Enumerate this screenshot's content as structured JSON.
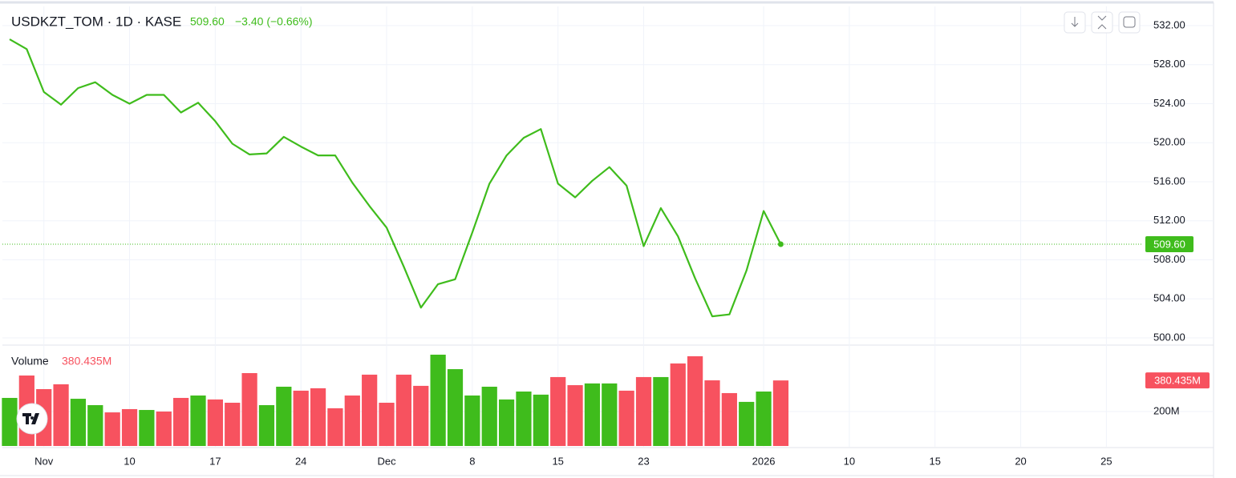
{
  "chart_data": [
    {
      "type": "line",
      "title": "USDKZT_TOM · 1D · KASE",
      "header_change": "−3.40 (−0.66%)",
      "series": [
        {
          "name": "USDKZT_TOM",
          "color": "#3fbc1c",
          "values": [
            530.6,
            529.6,
            525.2,
            523.9,
            525.6,
            526.2,
            524.9,
            524.0,
            524.9,
            524.9,
            523.1,
            524.1,
            522.2,
            519.9,
            518.8,
            518.9,
            520.6,
            519.6,
            518.7,
            518.7,
            515.9,
            513.5,
            511.3,
            507.3,
            503.1,
            505.5,
            506.0,
            510.8,
            515.8,
            518.7,
            520.5,
            521.4,
            515.8,
            514.4,
            516.1,
            517.5,
            515.6,
            509.4,
            513.3,
            510.4,
            506.1,
            502.2,
            502.4,
            506.9,
            513.0,
            509.6
          ],
          "value_labels": [
            null,
            null,
            null,
            null,
            null,
            null,
            null,
            null,
            null,
            null,
            null,
            null,
            null,
            null,
            null,
            null,
            null,
            null,
            null,
            null,
            null,
            null,
            null,
            null,
            null,
            null,
            null,
            null,
            null,
            null,
            null,
            null,
            null,
            null,
            null,
            null,
            null,
            null,
            null,
            null,
            null,
            null,
            null,
            null,
            null,
            "509.60"
          ]
        }
      ],
      "ylim": [
        499.34,
        533.97
      ],
      "yticks": [
        {
          "value": 532,
          "label": "532.00"
        },
        {
          "value": 528,
          "label": "528.00"
        },
        {
          "value": 524,
          "label": "524.00"
        },
        {
          "value": 520,
          "label": "520.00"
        },
        {
          "value": 516,
          "label": "516.00"
        },
        {
          "value": 512,
          "label": "512.00"
        },
        {
          "value": 508,
          "label": "508.00"
        },
        {
          "value": 504,
          "label": "504.00"
        },
        {
          "value": 500,
          "label": "500.00"
        }
      ],
      "grid": true
    },
    {
      "type": "bar",
      "series": [
        {
          "name": "Volume",
          "values": [
            279,
            409,
            330,
            358,
            274,
            237,
            195,
            214,
            209,
            200,
            279,
            293,
            270,
            251,
            423,
            237,
            344,
            321,
            335,
            219,
            293,
            414,
            251,
            414,
            349,
            530,
            446,
            293,
            344,
            270,
            316,
            298,
            400,
            353,
            363,
            363,
            321,
            400,
            400,
            479,
            521,
            381,
            307,
            256,
            316,
            380.435
          ],
          "value_labels": [
            null,
            null,
            null,
            null,
            null,
            null,
            null,
            null,
            null,
            null,
            null,
            null,
            null,
            null,
            null,
            null,
            null,
            null,
            null,
            null,
            null,
            null,
            null,
            null,
            null,
            null,
            null,
            null,
            null,
            null,
            null,
            null,
            null,
            null,
            null,
            null,
            null,
            null,
            null,
            null,
            null,
            null,
            null,
            null,
            null,
            "380.435M"
          ],
          "colors": [
            "#3fbc1c",
            "#f7525f",
            "#f7525f",
            "#f7525f",
            "#3fbc1c",
            "#3fbc1c",
            "#f7525f",
            "#f7525f",
            "#3fbc1c",
            "#f7525f",
            "#f7525f",
            "#3fbc1c",
            "#f7525f",
            "#f7525f",
            "#f7525f",
            "#3fbc1c",
            "#3fbc1c",
            "#f7525f",
            "#f7525f",
            "#f7525f",
            "#f7525f",
            "#f7525f",
            "#f7525f",
            "#f7525f",
            "#f7525f",
            "#3fbc1c",
            "#3fbc1c",
            "#3fbc1c",
            "#3fbc1c",
            "#3fbc1c",
            "#3fbc1c",
            "#3fbc1c",
            "#f7525f",
            "#f7525f",
            "#3fbc1c",
            "#3fbc1c",
            "#f7525f",
            "#f7525f",
            "#3fbc1c",
            "#f7525f",
            "#f7525f",
            "#f7525f",
            "#f7525f",
            "#3fbc1c",
            "#3fbc1c",
            "#f7525f"
          ]
        }
      ],
      "ylim": [
        0,
        581
      ],
      "yticks": [
        {
          "value": 200,
          "label": "200M"
        }
      ],
      "xlim": [
        -0.42,
        65.9
      ],
      "xticks": [
        {
          "value": 2,
          "label": "Nov"
        },
        {
          "value": 7,
          "label": "10"
        },
        {
          "value": 12,
          "label": "17"
        },
        {
          "value": 17,
          "label": "24"
        },
        {
          "value": 22,
          "label": "Dec"
        },
        {
          "value": 27,
          "label": "8"
        },
        {
          "value": 32,
          "label": "15"
        },
        {
          "value": 37,
          "label": "23"
        },
        {
          "value": 44,
          "label": "2026"
        },
        {
          "value": 49,
          "label": "10"
        },
        {
          "value": 54,
          "label": "15"
        },
        {
          "value": 59,
          "label": "20"
        },
        {
          "value": 64,
          "label": "25"
        }
      ],
      "grid": true
    }
  ]
}
